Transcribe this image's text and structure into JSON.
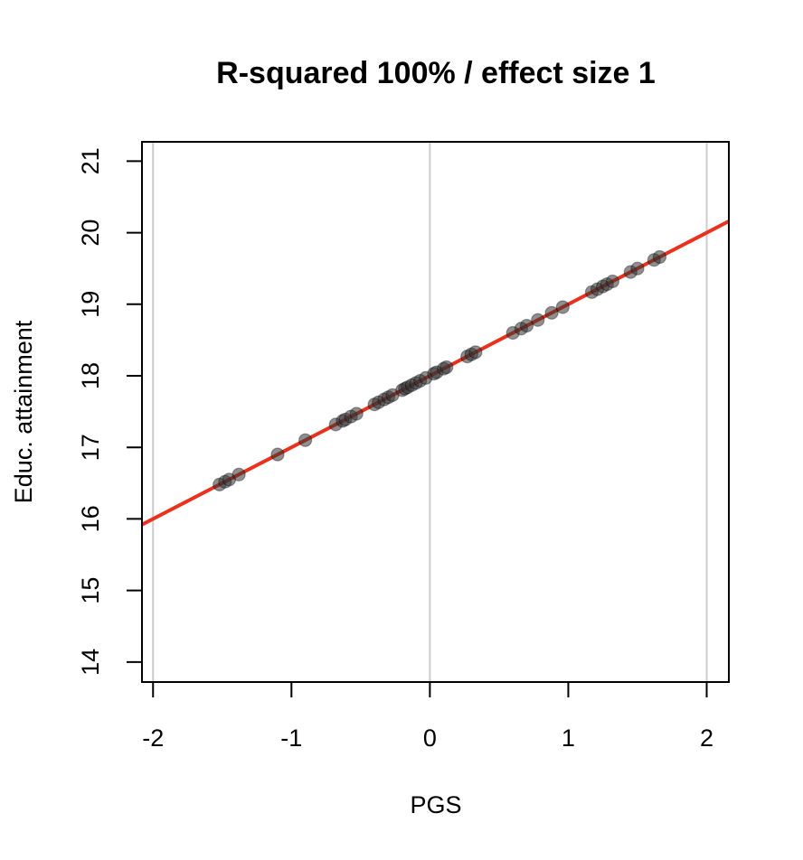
{
  "chart_data": {
    "type": "scatter",
    "title": "R-squared 100% / effect size 1",
    "xlabel": "PGS",
    "ylabel": "Educ. attainment",
    "xlim": [
      -2.08,
      2.16
    ],
    "ylim": [
      13.72,
      21.27
    ],
    "x_ticks": [
      -2,
      -1,
      0,
      1,
      2
    ],
    "y_ticks": [
      14,
      15,
      16,
      17,
      18,
      19,
      20,
      21
    ],
    "grid_x": [
      -2,
      0,
      2
    ],
    "fit_line": {
      "intercept": 18.0,
      "slope": 1.0,
      "color": "#e8321e"
    },
    "point_color": "#333333",
    "grid_color": "#cccccc",
    "points": [
      {
        "x": -1.52,
        "y": 16.48
      },
      {
        "x": -1.48,
        "y": 16.52
      },
      {
        "x": -1.45,
        "y": 16.55
      },
      {
        "x": -1.38,
        "y": 16.62
      },
      {
        "x": -1.1,
        "y": 16.9
      },
      {
        "x": -0.9,
        "y": 17.1
      },
      {
        "x": -0.68,
        "y": 17.32
      },
      {
        "x": -0.63,
        "y": 17.37
      },
      {
        "x": -0.61,
        "y": 17.39
      },
      {
        "x": -0.57,
        "y": 17.43
      },
      {
        "x": -0.53,
        "y": 17.47
      },
      {
        "x": -0.4,
        "y": 17.6
      },
      {
        "x": -0.37,
        "y": 17.63
      },
      {
        "x": -0.33,
        "y": 17.67
      },
      {
        "x": -0.3,
        "y": 17.7
      },
      {
        "x": -0.27,
        "y": 17.73
      },
      {
        "x": -0.2,
        "y": 17.8
      },
      {
        "x": -0.18,
        "y": 17.82
      },
      {
        "x": -0.16,
        "y": 17.84
      },
      {
        "x": -0.13,
        "y": 17.87
      },
      {
        "x": -0.1,
        "y": 17.9
      },
      {
        "x": -0.07,
        "y": 17.93
      },
      {
        "x": -0.03,
        "y": 17.97
      },
      {
        "x": 0.03,
        "y": 18.03
      },
      {
        "x": 0.05,
        "y": 18.05
      },
      {
        "x": 0.1,
        "y": 18.1
      },
      {
        "x": 0.12,
        "y": 18.12
      },
      {
        "x": 0.27,
        "y": 18.27
      },
      {
        "x": 0.3,
        "y": 18.3
      },
      {
        "x": 0.33,
        "y": 18.33
      },
      {
        "x": 0.6,
        "y": 18.6
      },
      {
        "x": 0.66,
        "y": 18.66
      },
      {
        "x": 0.7,
        "y": 18.7
      },
      {
        "x": 0.78,
        "y": 18.78
      },
      {
        "x": 0.88,
        "y": 18.88
      },
      {
        "x": 0.96,
        "y": 18.96
      },
      {
        "x": 1.17,
        "y": 19.17
      },
      {
        "x": 1.21,
        "y": 19.21
      },
      {
        "x": 1.25,
        "y": 19.25
      },
      {
        "x": 1.28,
        "y": 19.28
      },
      {
        "x": 1.32,
        "y": 19.32
      },
      {
        "x": 1.45,
        "y": 19.45
      },
      {
        "x": 1.5,
        "y": 19.5
      },
      {
        "x": 1.62,
        "y": 19.62
      },
      {
        "x": 1.66,
        "y": 19.66
      }
    ]
  }
}
